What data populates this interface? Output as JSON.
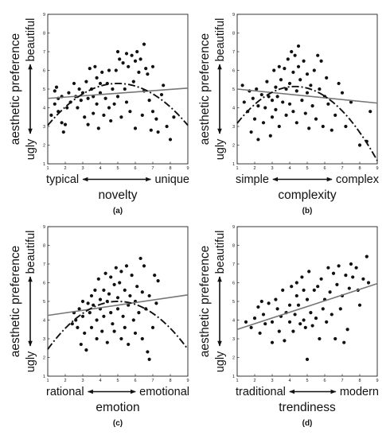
{
  "chart_data": [
    {
      "type": "scatter",
      "panel_label": "(a)",
      "xlabel": "novelty",
      "x_low_label": "typical",
      "x_high_label": "unique",
      "ylabel": "aesthetic preference",
      "y_low_label": "ugly",
      "y_high_label": "beautiful",
      "xlim": [
        1,
        9
      ],
      "ylim": [
        1,
        9
      ],
      "x_ticks": [
        "1",
        "2",
        "3",
        "4",
        "5",
        "6",
        "7",
        "8",
        "9"
      ],
      "y_ticks": [
        "1",
        "2",
        "3",
        "4",
        "5",
        "6",
        "7",
        "8",
        "9"
      ],
      "grid": false,
      "linear_fit": {
        "x": [
          1,
          9
        ],
        "y": [
          4.5,
          5.05
        ]
      },
      "quadratic_fit": {
        "a": -0.14,
        "b": 1.4,
        "c": 1.8
      },
      "points": [
        [
          1.2,
          3.6
        ],
        [
          1.4,
          4.2
        ],
        [
          1.4,
          4.9
        ],
        [
          1.5,
          5.1
        ],
        [
          1.6,
          3.8
        ],
        [
          1.6,
          4.5
        ],
        [
          1.8,
          4.6
        ],
        [
          1.8,
          3.2
        ],
        [
          1.9,
          2.7
        ],
        [
          2.0,
          3.1
        ],
        [
          2.1,
          4.0
        ],
        [
          2.2,
          4.8
        ],
        [
          2.3,
          4.3
        ],
        [
          2.5,
          5.3
        ],
        [
          2.6,
          4.6
        ],
        [
          2.7,
          4.0
        ],
        [
          2.8,
          5.0
        ],
        [
          2.9,
          4.4
        ],
        [
          3.0,
          4.8
        ],
        [
          3.1,
          3.5
        ],
        [
          3.2,
          5.4
        ],
        [
          3.3,
          4.5
        ],
        [
          3.3,
          3.1
        ],
        [
          3.4,
          6.1
        ],
        [
          3.5,
          5.0
        ],
        [
          3.6,
          4.6
        ],
        [
          3.6,
          3.7
        ],
        [
          3.7,
          6.2
        ],
        [
          3.8,
          5.6
        ],
        [
          3.8,
          4.2
        ],
        [
          3.9,
          2.9
        ],
        [
          4.0,
          5.3
        ],
        [
          4.0,
          4.8
        ],
        [
          4.1,
          5.9
        ],
        [
          4.2,
          3.6
        ],
        [
          4.3,
          4.5
        ],
        [
          4.4,
          5.3
        ],
        [
          4.5,
          6.0
        ],
        [
          4.5,
          4.0
        ],
        [
          4.6,
          3.3
        ],
        [
          4.7,
          5.0
        ],
        [
          4.8,
          4.2
        ],
        [
          4.9,
          6.0
        ],
        [
          5.0,
          7.0
        ],
        [
          5.0,
          4.6
        ],
        [
          5.1,
          6.6
        ],
        [
          5.2,
          3.5
        ],
        [
          5.3,
          6.4
        ],
        [
          5.4,
          5.0
        ],
        [
          5.5,
          6.9
        ],
        [
          5.5,
          4.3
        ],
        [
          5.6,
          6.2
        ],
        [
          5.7,
          3.8
        ],
        [
          5.8,
          6.8
        ],
        [
          5.9,
          5.4
        ],
        [
          6.0,
          6.5
        ],
        [
          6.0,
          2.9
        ],
        [
          6.1,
          7.0
        ],
        [
          6.2,
          5.9
        ],
        [
          6.3,
          6.6
        ],
        [
          6.4,
          3.6
        ],
        [
          6.5,
          7.4
        ],
        [
          6.5,
          4.9
        ],
        [
          6.6,
          6.1
        ],
        [
          6.7,
          5.8
        ],
        [
          6.8,
          4.4
        ],
        [
          6.9,
          2.8
        ],
        [
          7.0,
          3.8
        ],
        [
          7.0,
          6.2
        ],
        [
          7.2,
          3.4
        ],
        [
          7.3,
          2.7
        ],
        [
          7.5,
          4.7
        ],
        [
          7.6,
          5.2
        ],
        [
          7.8,
          3.0
        ],
        [
          8.0,
          2.3
        ],
        [
          8.2,
          3.5
        ]
      ]
    },
    {
      "type": "scatter",
      "panel_label": "(b)",
      "xlabel": "complexity",
      "x_low_label": "simple",
      "x_high_label": "complex",
      "ylabel": "aesthetic preference",
      "y_low_label": "ugly",
      "y_high_label": "beautiful",
      "xlim": [
        1,
        9
      ],
      "ylim": [
        1,
        9
      ],
      "x_ticks": [
        "1",
        "2",
        "3",
        "4",
        "5",
        "6",
        "7",
        "8",
        "9"
      ],
      "y_ticks": [
        "1",
        "2",
        "3",
        "4",
        "5",
        "6",
        "7",
        "8",
        "9"
      ],
      "grid": false,
      "linear_fit": {
        "x": [
          1,
          9
        ],
        "y": [
          5.0,
          4.25
        ]
      },
      "quadratic_fit": {
        "a": -0.18,
        "b": 1.55,
        "c": 1.8
      },
      "points": [
        [
          1.3,
          5.2
        ],
        [
          1.4,
          4.3
        ],
        [
          1.6,
          3.8
        ],
        [
          1.7,
          4.9
        ],
        [
          1.8,
          2.7
        ],
        [
          1.9,
          4.5
        ],
        [
          2.0,
          3.4
        ],
        [
          2.1,
          5.0
        ],
        [
          2.2,
          2.3
        ],
        [
          2.2,
          4.1
        ],
        [
          2.4,
          4.7
        ],
        [
          2.5,
          3.2
        ],
        [
          2.6,
          4.0
        ],
        [
          2.7,
          5.4
        ],
        [
          2.8,
          4.6
        ],
        [
          2.9,
          2.5
        ],
        [
          3.0,
          4.4
        ],
        [
          3.0,
          3.5
        ],
        [
          3.1,
          6.0
        ],
        [
          3.2,
          5.1
        ],
        [
          3.2,
          3.9
        ],
        [
          3.3,
          4.6
        ],
        [
          3.4,
          6.2
        ],
        [
          3.4,
          3.0
        ],
        [
          3.5,
          5.5
        ],
        [
          3.6,
          4.3
        ],
        [
          3.7,
          6.1
        ],
        [
          3.8,
          5.0
        ],
        [
          3.8,
          3.6
        ],
        [
          3.9,
          6.6
        ],
        [
          4.0,
          5.3
        ],
        [
          4.0,
          4.2
        ],
        [
          4.1,
          7.0
        ],
        [
          4.2,
          5.9
        ],
        [
          4.2,
          3.8
        ],
        [
          4.3,
          6.8
        ],
        [
          4.4,
          4.9
        ],
        [
          4.4,
          3.2
        ],
        [
          4.5,
          7.3
        ],
        [
          4.5,
          6.2
        ],
        [
          4.6,
          5.5
        ],
        [
          4.7,
          4.4
        ],
        [
          4.8,
          6.5
        ],
        [
          4.9,
          3.7
        ],
        [
          5.0,
          5.8
        ],
        [
          5.0,
          4.8
        ],
        [
          5.1,
          2.9
        ],
        [
          5.2,
          5.2
        ],
        [
          5.3,
          4.1
        ],
        [
          5.4,
          6.0
        ],
        [
          5.5,
          3.4
        ],
        [
          5.6,
          6.8
        ],
        [
          5.7,
          5.0
        ],
        [
          5.8,
          6.5
        ],
        [
          5.9,
          3.0
        ],
        [
          6.0,
          4.6
        ],
        [
          6.1,
          5.6
        ],
        [
          6.2,
          4.2
        ],
        [
          6.4,
          2.8
        ],
        [
          6.6,
          3.6
        ],
        [
          6.8,
          5.3
        ],
        [
          7.0,
          4.8
        ],
        [
          7.2,
          3.0
        ],
        [
          7.5,
          4.3
        ],
        [
          8.0,
          2.0
        ],
        [
          8.4,
          2.2
        ],
        [
          8.6,
          3.8
        ]
      ]
    },
    {
      "type": "scatter",
      "panel_label": "(c)",
      "xlabel": "emotion",
      "x_low_label": "rational",
      "x_high_label": "emotional",
      "ylabel": "aesthetic preference",
      "y_low_label": "ugly",
      "y_high_label": "beautiful",
      "xlim": [
        1,
        9
      ],
      "ylim": [
        1,
        9
      ],
      "x_ticks": [
        "1",
        "2",
        "3",
        "4",
        "5",
        "6",
        "7",
        "8",
        "9"
      ],
      "y_ticks": [
        "1",
        "2",
        "3",
        "4",
        "5",
        "6",
        "7",
        "8",
        "9"
      ],
      "grid": false,
      "linear_fit": {
        "x": [
          1,
          9
        ],
        "y": [
          4.25,
          5.35
        ]
      },
      "quadratic_fit": {
        "a": -0.16,
        "b": 1.6,
        "c": 1.0
      },
      "points": [
        [
          2.4,
          3.8
        ],
        [
          2.5,
          4.4
        ],
        [
          2.6,
          4.0
        ],
        [
          2.7,
          3.6
        ],
        [
          2.8,
          4.6
        ],
        [
          2.9,
          2.7
        ],
        [
          3.0,
          4.2
        ],
        [
          3.0,
          5.0
        ],
        [
          3.1,
          3.3
        ],
        [
          3.2,
          2.4
        ],
        [
          3.3,
          4.9
        ],
        [
          3.4,
          4.4
        ],
        [
          3.5,
          5.3
        ],
        [
          3.5,
          3.6
        ],
        [
          3.6,
          4.8
        ],
        [
          3.7,
          5.6
        ],
        [
          3.8,
          4.0
        ],
        [
          3.8,
          3.0
        ],
        [
          3.9,
          6.2
        ],
        [
          4.0,
          5.1
        ],
        [
          4.0,
          4.6
        ],
        [
          4.1,
          3.4
        ],
        [
          4.2,
          5.6
        ],
        [
          4.2,
          4.2
        ],
        [
          4.3,
          6.5
        ],
        [
          4.4,
          5.0
        ],
        [
          4.4,
          2.8
        ],
        [
          4.5,
          5.4
        ],
        [
          4.6,
          4.4
        ],
        [
          4.6,
          6.3
        ],
        [
          4.7,
          3.8
        ],
        [
          4.8,
          5.9
        ],
        [
          4.8,
          3.4
        ],
        [
          4.9,
          6.8
        ],
        [
          5.0,
          5.2
        ],
        [
          5.0,
          4.6
        ],
        [
          5.1,
          6.0
        ],
        [
          5.2,
          3.0
        ],
        [
          5.2,
          6.6
        ],
        [
          5.3,
          4.2
        ],
        [
          5.4,
          5.6
        ],
        [
          5.4,
          3.6
        ],
        [
          5.5,
          6.9
        ],
        [
          5.6,
          4.8
        ],
        [
          5.6,
          2.7
        ],
        [
          5.7,
          5.3
        ],
        [
          5.8,
          6.4
        ],
        [
          5.9,
          4.0
        ],
        [
          6.0,
          5.0
        ],
        [
          6.0,
          3.3
        ],
        [
          6.1,
          5.8
        ],
        [
          6.2,
          4.4
        ],
        [
          6.3,
          7.3
        ],
        [
          6.4,
          5.5
        ],
        [
          6.4,
          3.0
        ],
        [
          6.5,
          6.9
        ],
        [
          6.6,
          4.6
        ],
        [
          6.7,
          2.3
        ],
        [
          6.8,
          5.3
        ],
        [
          6.8,
          1.9
        ],
        [
          7.0,
          3.6
        ],
        [
          7.1,
          6.4
        ],
        [
          7.2,
          4.9
        ],
        [
          7.3,
          6.1
        ]
      ]
    },
    {
      "type": "scatter",
      "panel_label": "(d)",
      "xlabel": "trendiness",
      "x_low_label": "traditional",
      "x_high_label": "modern",
      "ylabel": "aesthetic preference",
      "y_low_label": "ugly",
      "y_high_label": "beautiful",
      "xlim": [
        1,
        9
      ],
      "ylim": [
        1,
        9
      ],
      "x_ticks": [
        "1",
        "2",
        "3",
        "4",
        "5",
        "6",
        "7",
        "8",
        "9"
      ],
      "y_ticks": [
        "1",
        "2",
        "3",
        "4",
        "5",
        "6",
        "7",
        "8",
        "9"
      ],
      "grid": false,
      "linear_fit": {
        "x": [
          1,
          9
        ],
        "y": [
          3.5,
          5.95
        ]
      },
      "points": [
        [
          1.5,
          3.9
        ],
        [
          1.8,
          3.6
        ],
        [
          2.0,
          4.1
        ],
        [
          2.2,
          4.7
        ],
        [
          2.3,
          3.3
        ],
        [
          2.4,
          5.0
        ],
        [
          2.5,
          4.3
        ],
        [
          2.6,
          3.8
        ],
        [
          2.8,
          4.9
        ],
        [
          3.0,
          3.9
        ],
        [
          3.0,
          2.8
        ],
        [
          3.2,
          5.1
        ],
        [
          3.3,
          4.6
        ],
        [
          3.4,
          3.4
        ],
        [
          3.5,
          4.2
        ],
        [
          3.6,
          5.6
        ],
        [
          3.7,
          2.9
        ],
        [
          3.8,
          4.4
        ],
        [
          4.0,
          3.9
        ],
        [
          4.0,
          4.8
        ],
        [
          4.1,
          5.8
        ],
        [
          4.2,
          3.4
        ],
        [
          4.3,
          4.3
        ],
        [
          4.4,
          5.3
        ],
        [
          4.4,
          6.0
        ],
        [
          4.5,
          4.8
        ],
        [
          4.6,
          3.8
        ],
        [
          4.7,
          6.3
        ],
        [
          4.8,
          4.0
        ],
        [
          4.8,
          5.6
        ],
        [
          4.9,
          3.6
        ],
        [
          5.0,
          5.1
        ],
        [
          5.0,
          1.9
        ],
        [
          5.1,
          6.6
        ],
        [
          5.2,
          4.4
        ],
        [
          5.3,
          3.7
        ],
        [
          5.4,
          5.6
        ],
        [
          5.5,
          4.1
        ],
        [
          5.6,
          5.8
        ],
        [
          5.7,
          3.0
        ],
        [
          5.8,
          6.2
        ],
        [
          5.9,
          4.6
        ],
        [
          6.0,
          5.1
        ],
        [
          6.1,
          3.9
        ],
        [
          6.2,
          6.8
        ],
        [
          6.3,
          5.5
        ],
        [
          6.4,
          4.3
        ],
        [
          6.5,
          6.5
        ],
        [
          6.6,
          3.0
        ],
        [
          6.7,
          5.9
        ],
        [
          6.8,
          6.9
        ],
        [
          6.9,
          4.6
        ],
        [
          7.0,
          5.3
        ],
        [
          7.1,
          2.8
        ],
        [
          7.2,
          6.4
        ],
        [
          7.3,
          3.5
        ],
        [
          7.4,
          5.7
        ],
        [
          7.5,
          7.0
        ],
        [
          7.6,
          6.3
        ],
        [
          7.8,
          6.8
        ],
        [
          7.9,
          5.6
        ],
        [
          8.0,
          4.8
        ],
        [
          8.2,
          6.2
        ],
        [
          8.4,
          7.4
        ],
        [
          8.5,
          6.0
        ]
      ]
    }
  ]
}
